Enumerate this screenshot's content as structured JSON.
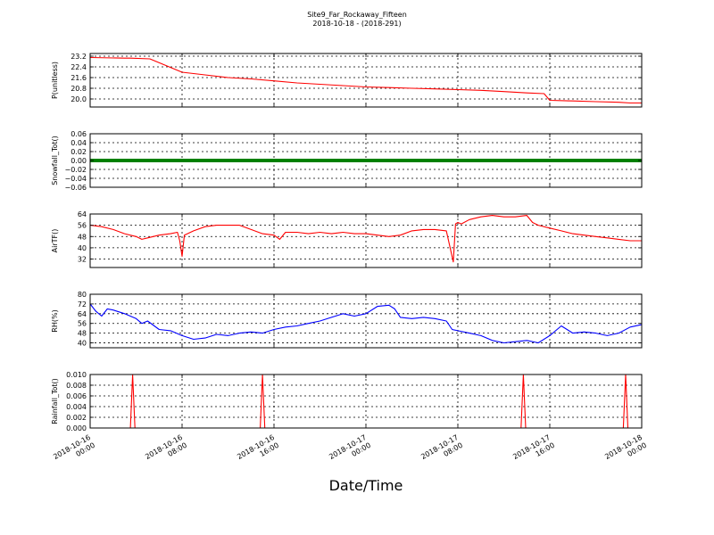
{
  "figure": {
    "title_line1": "Site9_Far_Rockaway_Fifteen",
    "title_line2": "2018-10-18 - (2018-291)",
    "xlabel": "Date/Time"
  },
  "chart_data": [
    {
      "type": "line",
      "ylabel": "P(unitless)",
      "color": "#ff0000",
      "ylim": [
        19.4,
        23.4
      ],
      "yticks": [
        20.0,
        20.8,
        21.6,
        22.4,
        23.2
      ],
      "ytick_labels": [
        "20.0",
        "20.8",
        "21.6",
        "22.4",
        "23.2"
      ],
      "grid": true,
      "x_hours": [
        0,
        3,
        3.5,
        5.2,
        8,
        10,
        12,
        14,
        16,
        18,
        20,
        22,
        24,
        26,
        28,
        30,
        32,
        34,
        36,
        38,
        39.5,
        40,
        42,
        44,
        46,
        47,
        48
      ],
      "y": [
        23.1,
        23.05,
        23.05,
        23.0,
        22.0,
        21.8,
        21.6,
        21.5,
        21.35,
        21.2,
        21.1,
        21.0,
        20.9,
        20.85,
        20.8,
        20.75,
        20.7,
        20.65,
        20.55,
        20.45,
        20.4,
        19.9,
        19.85,
        19.8,
        19.75,
        19.7,
        19.7
      ]
    },
    {
      "type": "scatter",
      "ylabel": "Snowfall_Tot()",
      "color": "#008000",
      "ylim": [
        -0.06,
        0.06
      ],
      "yticks": [
        -0.06,
        -0.04,
        -0.02,
        0.0,
        0.02,
        0.04,
        0.06
      ],
      "ytick_labels": [
        "−0.06",
        "−0.04",
        "−0.02",
        "0.00",
        "0.02",
        "0.04",
        "0.06"
      ],
      "grid": true,
      "x_hours": [
        0,
        48
      ],
      "y_constant": 0.0
    },
    {
      "type": "line",
      "ylabel": "AirTF()",
      "color": "#ff0000",
      "ylim": [
        26,
        64
      ],
      "yticks": [
        32,
        40,
        48,
        56,
        64
      ],
      "ytick_labels": [
        "32",
        "40",
        "48",
        "56",
        "64"
      ],
      "grid": true,
      "x_hours": [
        0,
        1,
        2,
        3,
        4,
        4.5,
        5,
        6,
        7,
        7.6,
        7.8,
        8,
        8.2,
        9,
        10,
        11,
        12,
        13,
        14,
        15,
        16,
        16.5,
        17,
        18,
        19,
        20,
        21,
        22,
        23,
        24,
        25,
        26,
        27,
        28,
        29,
        30,
        31,
        31.6,
        31.8,
        32,
        32.3,
        33,
        34,
        35,
        36,
        37,
        38,
        38.5,
        39,
        40,
        41,
        42,
        43,
        44,
        45,
        46,
        47,
        48
      ],
      "y": [
        56,
        55,
        53,
        50,
        48,
        46,
        47,
        49,
        50,
        51,
        45,
        34,
        49,
        52,
        55,
        56,
        56,
        56,
        53,
        50,
        49,
        46,
        51,
        51,
        50,
        51,
        50,
        51,
        50,
        50,
        49,
        48,
        49,
        52,
        53,
        53,
        52,
        30,
        57,
        58,
        57,
        60,
        62,
        63,
        62,
        62,
        63,
        58,
        56,
        54,
        52,
        50,
        49,
        48,
        47,
        46,
        45,
        45
      ]
    },
    {
      "type": "line",
      "ylabel": "RH(%)",
      "color": "#0000ff",
      "ylim": [
        36,
        80
      ],
      "yticks": [
        40,
        48,
        56,
        64,
        72,
        80
      ],
      "ytick_labels": [
        "40",
        "48",
        "56",
        "64",
        "72",
        "80"
      ],
      "grid": true,
      "x_hours": [
        0,
        0.5,
        1,
        1.5,
        2,
        3,
        4,
        4.5,
        5,
        6,
        7,
        8,
        9,
        10,
        11,
        12,
        13,
        14,
        15,
        16,
        17,
        18,
        19,
        20,
        21,
        22,
        23,
        24,
        25,
        26,
        26.5,
        27,
        28,
        29,
        30,
        31,
        31.5,
        32,
        33,
        34,
        35,
        36,
        37,
        38,
        39,
        40,
        41,
        42,
        43,
        44,
        45,
        46,
        47,
        48
      ],
      "y": [
        72,
        66,
        62,
        68,
        67,
        64,
        60,
        56,
        58,
        51,
        50,
        46,
        43,
        44,
        47,
        46,
        48,
        49,
        48,
        51,
        53,
        54,
        56,
        58,
        61,
        64,
        62,
        64,
        70,
        71,
        68,
        61,
        60,
        61,
        60,
        58,
        51,
        50,
        48,
        46,
        42,
        40,
        41,
        42,
        40,
        46,
        54,
        48,
        49,
        48,
        46,
        48,
        53,
        55
      ]
    },
    {
      "type": "line",
      "ylabel": "Rainfall_Tot()",
      "color": "#ff0000",
      "ylim": [
        0,
        0.01
      ],
      "yticks": [
        0.0,
        0.002,
        0.004,
        0.006,
        0.008,
        0.01
      ],
      "ytick_labels": [
        "0.000",
        "0.002",
        "0.004",
        "0.006",
        "0.008",
        "0.010"
      ],
      "grid": true,
      "x_hours": [
        0,
        3.5,
        3.7,
        3.9,
        14.8,
        15,
        15.2,
        37.5,
        37.7,
        37.9,
        46.4,
        46.6,
        46.8,
        48
      ],
      "y": [
        0,
        0,
        0.01,
        0,
        0,
        0.01,
        0,
        0,
        0.01,
        0,
        0,
        0.01,
        0,
        0
      ]
    }
  ],
  "x_axis": {
    "tick_hours": [
      0,
      8,
      16,
      24,
      32,
      40,
      48
    ],
    "tick_labels": [
      [
        "2018-10-16",
        "00:00"
      ],
      [
        "2018-10-16",
        "08:00"
      ],
      [
        "2018-10-16",
        "16:00"
      ],
      [
        "2018-10-17",
        "00:00"
      ],
      [
        "2018-10-17",
        "08:00"
      ],
      [
        "2018-10-17",
        "16:00"
      ],
      [
        "2018-10-18",
        "00:00"
      ]
    ]
  }
}
